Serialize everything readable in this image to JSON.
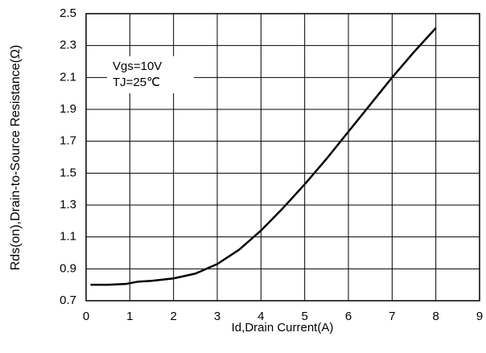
{
  "chart_data": {
    "type": "line",
    "x_label": "Id,Drain Current(A)",
    "y_label": "Rds(on),Drain-to-Source Resistance(Ω)",
    "annotations": [
      "Vgs=10V",
      "TJ=25℃"
    ],
    "x": [
      0.1,
      0.5,
      0.9,
      1.2,
      1.5,
      2,
      2.5,
      3,
      3.5,
      4,
      4.5,
      5,
      5.5,
      6,
      6.5,
      7,
      7.5,
      8
    ],
    "series": [
      {
        "color": "#000000",
        "values": [
          0.8,
          0.8,
          0.805,
          0.82,
          0.825,
          0.84,
          0.87,
          0.93,
          1.02,
          1.14,
          1.28,
          1.43,
          1.59,
          1.76,
          1.93,
          2.1,
          2.26,
          2.41
        ]
      }
    ],
    "xlim": [
      0,
      9
    ],
    "xticks": [
      0,
      1,
      2,
      3,
      4,
      5,
      6,
      7,
      8,
      9
    ],
    "ylim": [
      0.7,
      2.5
    ],
    "yticks": [
      0.7,
      0.9,
      1.1,
      1.3,
      1.5,
      1.7,
      1.9,
      2.1,
      2.3,
      2.5
    ],
    "grid": true
  }
}
